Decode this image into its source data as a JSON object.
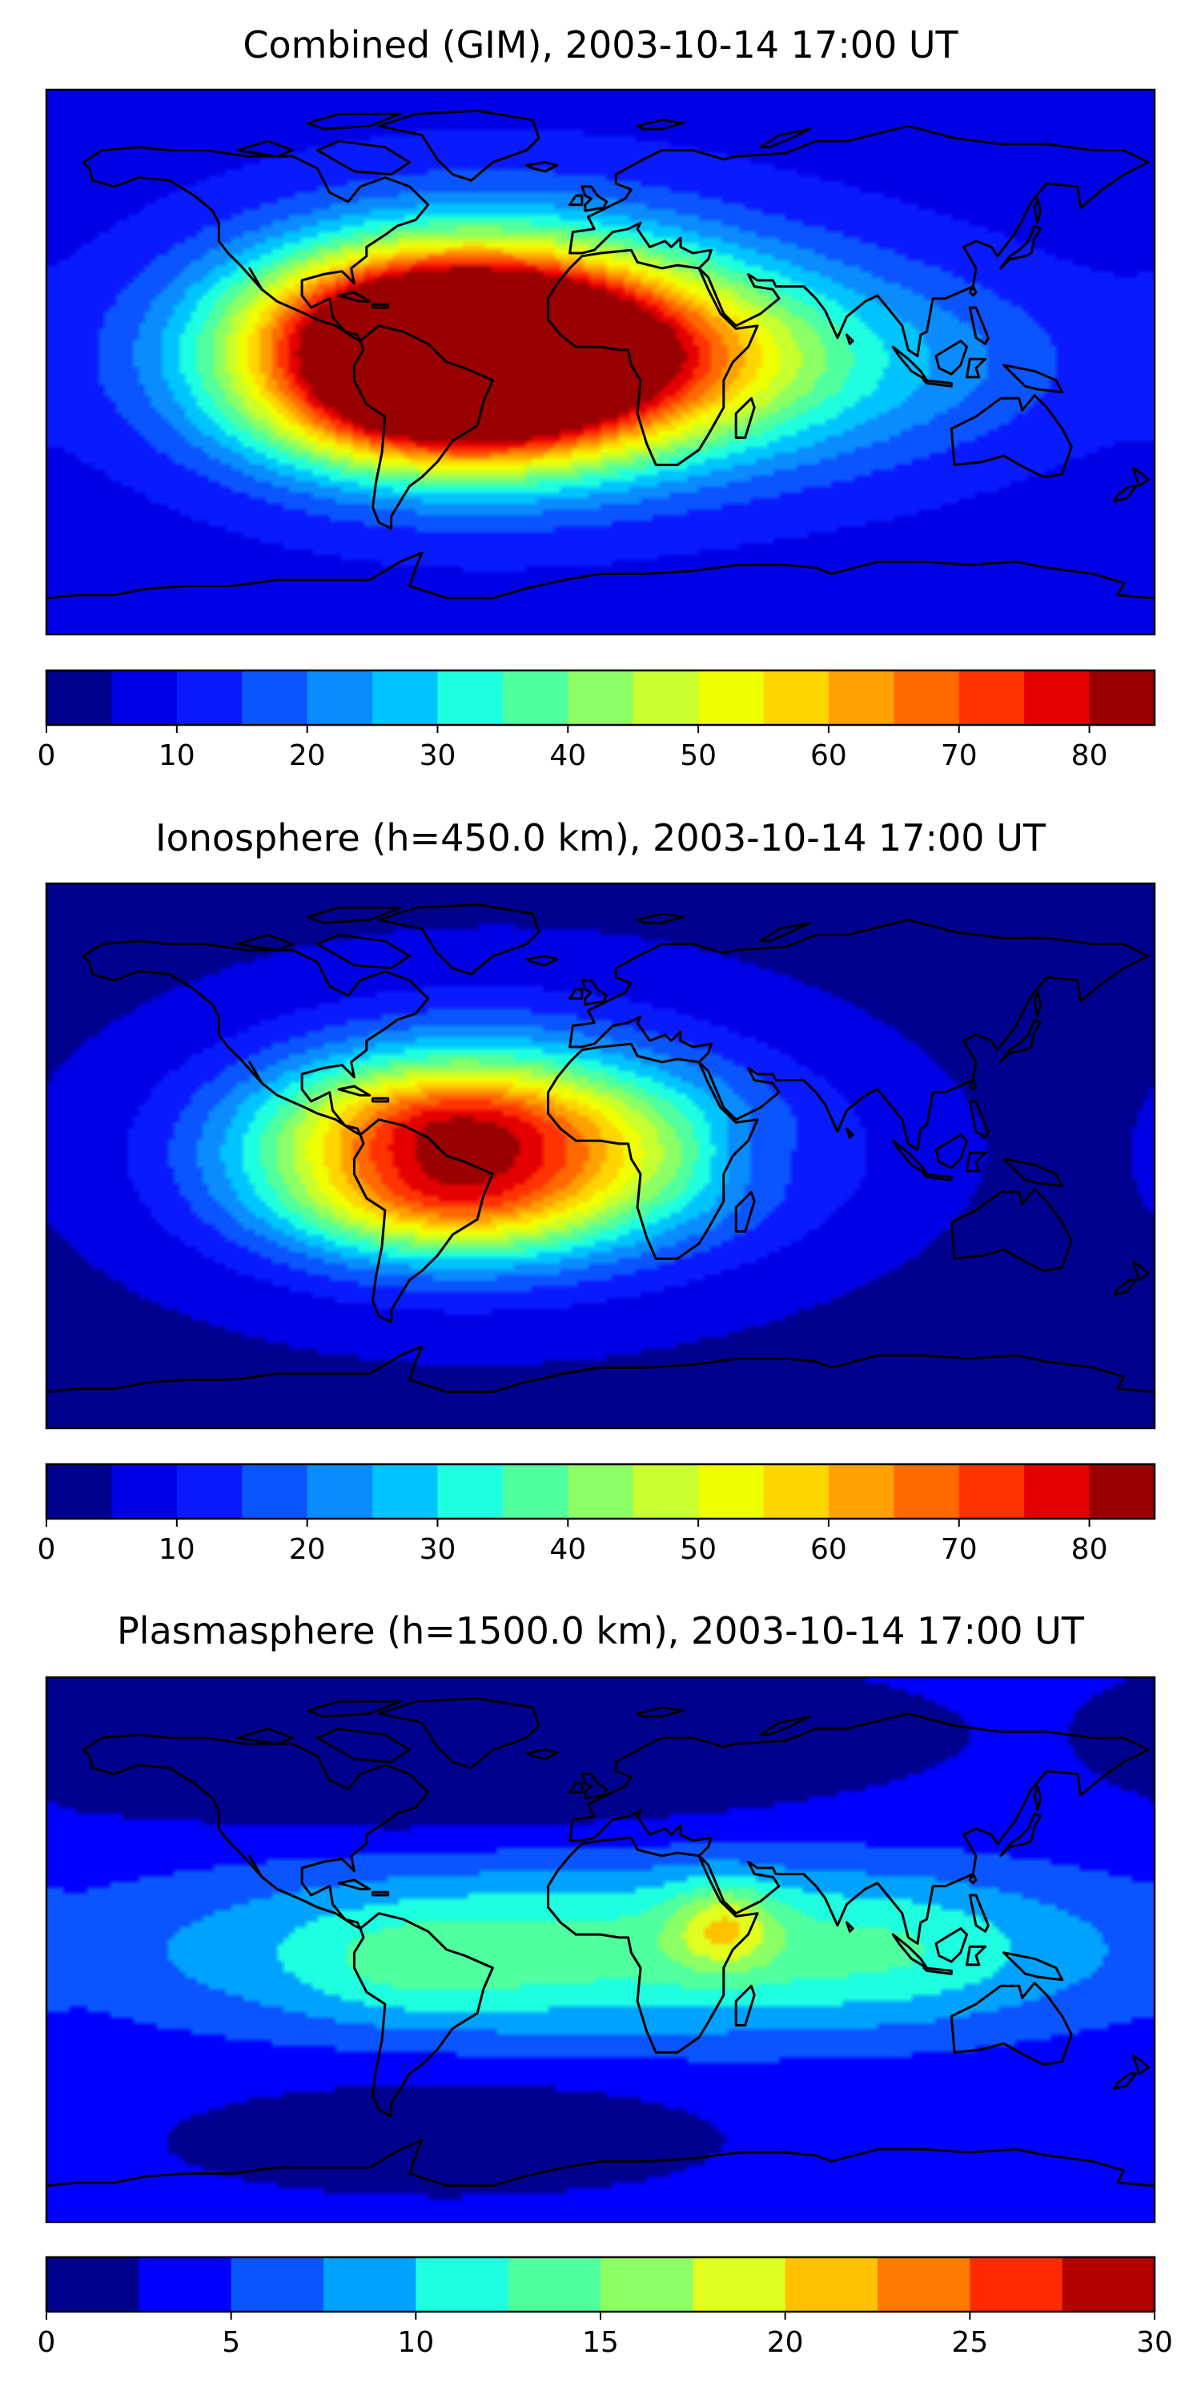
{
  "chart_data": [
    {
      "type": "heatmap",
      "title": "Combined (GIM), 2003-10-14 17:00 UT",
      "colorbar": {
        "min": 0,
        "max": 85,
        "step": 5,
        "ticks": [
          0,
          10,
          20,
          30,
          40,
          50,
          60,
          70,
          80
        ],
        "tick_labels": [
          "0",
          "10",
          "20",
          "30",
          "40",
          "50",
          "60",
          "70",
          "80"
        ],
        "colors": [
          "#00008f",
          "#0000e6",
          "#0a1aff",
          "#0a55ff",
          "#0a8cff",
          "#00c4ff",
          "#1dffe0",
          "#50ff9e",
          "#8cff64",
          "#c8ff2e",
          "#f0ff00",
          "#ffd500",
          "#ffa100",
          "#ff6a00",
          "#ff3300",
          "#e50000",
          "#990000"
        ]
      },
      "background_value": 8,
      "features": [
        {
          "lon": -55,
          "lat": 2,
          "value": 72,
          "sigma_lon": 45,
          "sigma_lat": 22
        },
        {
          "lon": -30,
          "lat": 5,
          "value": 50,
          "sigma_lon": 55,
          "sigma_lat": 28
        },
        {
          "lon": 10,
          "lat": 0,
          "value": 25,
          "sigma_lon": 45,
          "sigma_lat": 20
        },
        {
          "lon": 75,
          "lat": 0,
          "value": 12,
          "sigma_lon": 40,
          "sigma_lat": 25
        },
        {
          "lon": -50,
          "lat": 20,
          "value": 12,
          "sigma_lon": 35,
          "sigma_lat": 12
        },
        {
          "lon": -50,
          "lat": -20,
          "value": 15,
          "sigma_lon": 35,
          "sigma_lat": 12
        },
        {
          "lon": 130,
          "lat": 0,
          "value": 5,
          "sigma_lon": 30,
          "sigma_lat": 20
        }
      ]
    },
    {
      "type": "heatmap",
      "title": "Ionosphere  (h=450.0 km), 2003-10-14 17:00 UT",
      "colorbar": {
        "min": 0,
        "max": 85,
        "step": 5,
        "ticks": [
          0,
          10,
          20,
          30,
          40,
          50,
          60,
          70,
          80
        ],
        "tick_labels": [
          "0",
          "10",
          "20",
          "30",
          "40",
          "50",
          "60",
          "70",
          "80"
        ],
        "colors": [
          "#00008f",
          "#0000e6",
          "#0a1aff",
          "#0a55ff",
          "#0a8cff",
          "#00c4ff",
          "#1dffe0",
          "#50ff9e",
          "#8cff64",
          "#c8ff2e",
          "#f0ff00",
          "#ffd500",
          "#ffa100",
          "#ff6a00",
          "#ff3300",
          "#e50000",
          "#990000"
        ]
      },
      "background_value": 4,
      "features": [
        {
          "lon": -55,
          "lat": 0,
          "value": 48,
          "sigma_lon": 45,
          "sigma_lat": 22
        },
        {
          "lon": -30,
          "lat": 5,
          "value": 22,
          "sigma_lon": 55,
          "sigma_lat": 28
        },
        {
          "lon": 10,
          "lat": 0,
          "value": 15,
          "sigma_lon": 45,
          "sigma_lat": 20
        },
        {
          "lon": -50,
          "lat": 15,
          "value": 10,
          "sigma_lon": 30,
          "sigma_lat": 10
        },
        {
          "lon": -50,
          "lat": -18,
          "value": 12,
          "sigma_lon": 30,
          "sigma_lat": 10
        },
        {
          "lon": 50,
          "lat": 0,
          "value": -6,
          "sigma_lon": 12,
          "sigma_lat": 10
        }
      ]
    },
    {
      "type": "heatmap",
      "title": "Plasmasphere (h=1500.0 km), 2003-10-14 17:00 UT",
      "colorbar": {
        "min": 0,
        "max": 30,
        "step": 2.5,
        "ticks": [
          0,
          5,
          10,
          15,
          20,
          25,
          30
        ],
        "tick_labels": [
          "0",
          "5",
          "10",
          "15",
          "20",
          "25",
          "30"
        ],
        "colors": [
          "#00008f",
          "#0000ff",
          "#0a55ff",
          "#00a2ff",
          "#1dffe0",
          "#50ff9e",
          "#8cff64",
          "#e1ff1e",
          "#ffc100",
          "#ff7b00",
          "#ff2a00",
          "#b30000"
        ]
      },
      "background_value": 2.5,
      "features": [
        {
          "lon": 10,
          "lat": 0,
          "value": 11,
          "sigma_lon": 120,
          "sigma_lat": 22
        },
        {
          "lon": 40,
          "lat": 8,
          "value": 8,
          "sigma_lon": 12,
          "sigma_lat": 10
        },
        {
          "lon": -60,
          "lat": -5,
          "value": 3,
          "sigma_lon": 25,
          "sigma_lat": 12
        },
        {
          "lon": 100,
          "lat": 0,
          "value": 2,
          "sigma_lon": 30,
          "sigma_lat": 15
        },
        {
          "lon": -40,
          "lat": 50,
          "value": -2.5,
          "sigma_lon": 70,
          "sigma_lat": 12
        },
        {
          "lon": -40,
          "lat": -50,
          "value": -1.5,
          "sigma_lon": 50,
          "sigma_lat": 10
        }
      ]
    }
  ]
}
